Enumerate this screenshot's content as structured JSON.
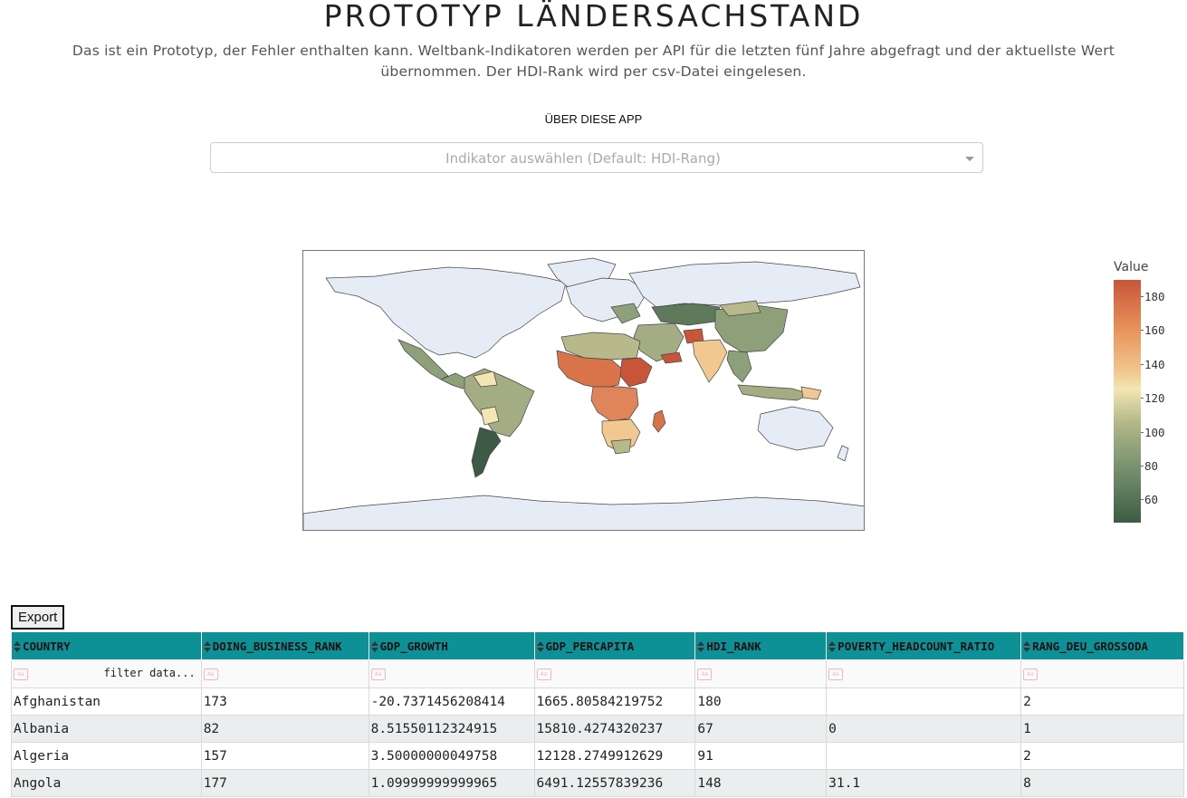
{
  "header": {
    "title": "PROTOTYP LÄNDERSACHSTAND",
    "subtitle_line1": "Das ist ein Prototyp, der Fehler enthalten kann. Weltbank-Indikatoren werden per API für die letzten fünf Jahre abgefragt und der aktuellste Wert",
    "subtitle_line2": "übernommen. Der HDI-Rank wird per csv-Datei eingelesen.",
    "about_link": "ÜBER DIESE APP"
  },
  "indicator_dropdown": {
    "placeholder": "Indikator auswählen (Default: HDI-Rang)"
  },
  "map": {
    "legend_title": "Value",
    "colorbar_ticks": [
      "180",
      "160",
      "140",
      "120",
      "100",
      "80",
      "60"
    ],
    "colors": {
      "high": "#c8553a",
      "mid": "#f3e6b4",
      "low": "#3d5a44",
      "no_data": "#e5ecf6"
    }
  },
  "table": {
    "export_label": "Export",
    "filter_placeholder": "filter data...",
    "filter_case_icon": "Aa",
    "header_color": "#0e9196",
    "columns": [
      "COUNTRY",
      "DOING_BUSINESS_RANK",
      "GDP_GROWTH",
      "GDP_PERCAPITA",
      "HDI_RANK",
      "POVERTY_HEADCOUNT_RATIO",
      "RANG_DEU_GROSSODA"
    ],
    "rows": [
      [
        "Afghanistan",
        "173",
        "-20.7371456208414",
        "1665.80584219752",
        "180",
        "",
        "2"
      ],
      [
        "Albania",
        "82",
        "8.51550112324915",
        "15810.4274320237",
        "67",
        "0",
        "1"
      ],
      [
        "Algeria",
        "157",
        "3.50000000049758",
        "12128.2749912629",
        "91",
        "",
        "2"
      ],
      [
        "Angola",
        "177",
        "1.09999999999965",
        "6491.12557839236",
        "148",
        "31.1",
        "8"
      ]
    ]
  }
}
